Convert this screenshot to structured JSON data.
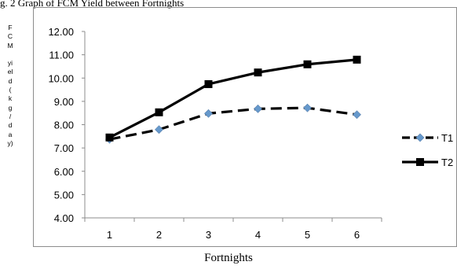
{
  "caption": "g. 2 Graph of FCM Yield between Fortnights",
  "chart_data": {
    "type": "line",
    "x": [
      1,
      2,
      3,
      4,
      5,
      6
    ],
    "categories": [
      "1",
      "2",
      "3",
      "4",
      "5",
      "6"
    ],
    "series": [
      {
        "name": "T1",
        "values": [
          7.37,
          7.79,
          8.48,
          8.68,
          8.72,
          8.43
        ],
        "style": "dashed",
        "marker": "diamond",
        "line_color": "#000000",
        "marker_color": "#6699cc"
      },
      {
        "name": "T2",
        "values": [
          7.45,
          8.53,
          9.74,
          10.24,
          10.59,
          10.79
        ],
        "style": "solid",
        "marker": "square",
        "line_color": "#000000",
        "marker_color": "#000000"
      }
    ],
    "ylim": [
      4.0,
      12.0
    ],
    "yticks": [
      "4.00",
      "5.00",
      "6.00",
      "7.00",
      "8.00",
      "9.00",
      "10.00",
      "11.00",
      "12.00"
    ],
    "ylabel_chars": [
      "F",
      "C",
      "M",
      "",
      "yi",
      "el",
      "d",
      "(",
      "k",
      "g",
      "/",
      "d",
      "a",
      "y)"
    ],
    "xlabel": "Fortnights",
    "grid": false,
    "legend_position": "right"
  }
}
